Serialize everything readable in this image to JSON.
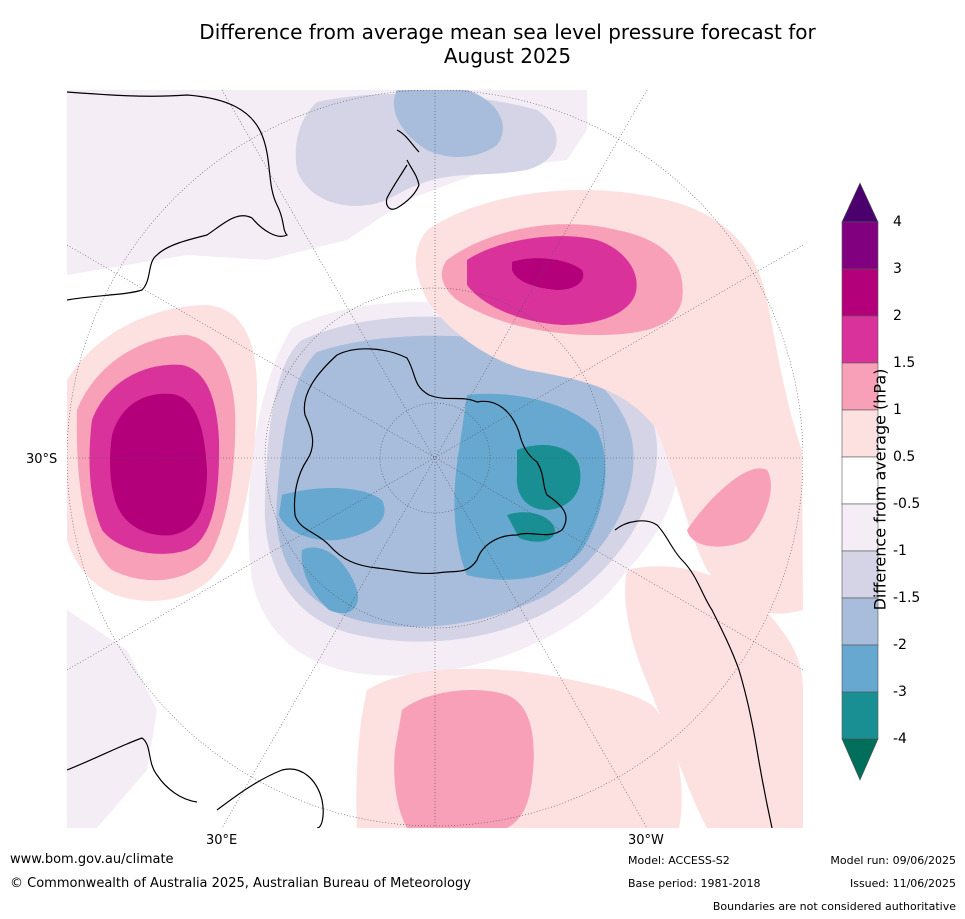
{
  "title_line1": "Difference from average mean sea level pressure forecast for",
  "title_line2": "August 2025",
  "map_labels": {
    "lat_30s": "30°S",
    "lon_30e": "30°E",
    "lon_30w": "30°W"
  },
  "colorbar": {
    "title": "Difference from average (hPa)",
    "ticks": [
      "4",
      "3",
      "2",
      "1.5",
      "1",
      "0.5",
      "-0.5",
      "-1",
      "-1.5",
      "-2",
      "-3",
      "-4"
    ],
    "colors": [
      "#800080",
      "#b3007a",
      "#d9339b",
      "#f7a0b8",
      "#fde0e0",
      "#ffffff",
      "#f5edf5",
      "#d4d4e6",
      "#a8bcdb",
      "#66a8cf",
      "#1a8f93"
    ],
    "extend_top_color": "#4b006e",
    "extend_bottom_color": "#006e5a"
  },
  "footer": {
    "website": "www.bom.gov.au/climate",
    "copyright": "© Commonwealth of Australia 2025, Australian Bureau of Meteorology",
    "model": "Model: ACCESS-S2",
    "base_period": "Base period: 1981-2018",
    "model_run": "Model run: 09/06/2025",
    "issued": "Issued: 11/06/2025",
    "disclaimer": "Boundaries are not considered authoritative"
  }
}
